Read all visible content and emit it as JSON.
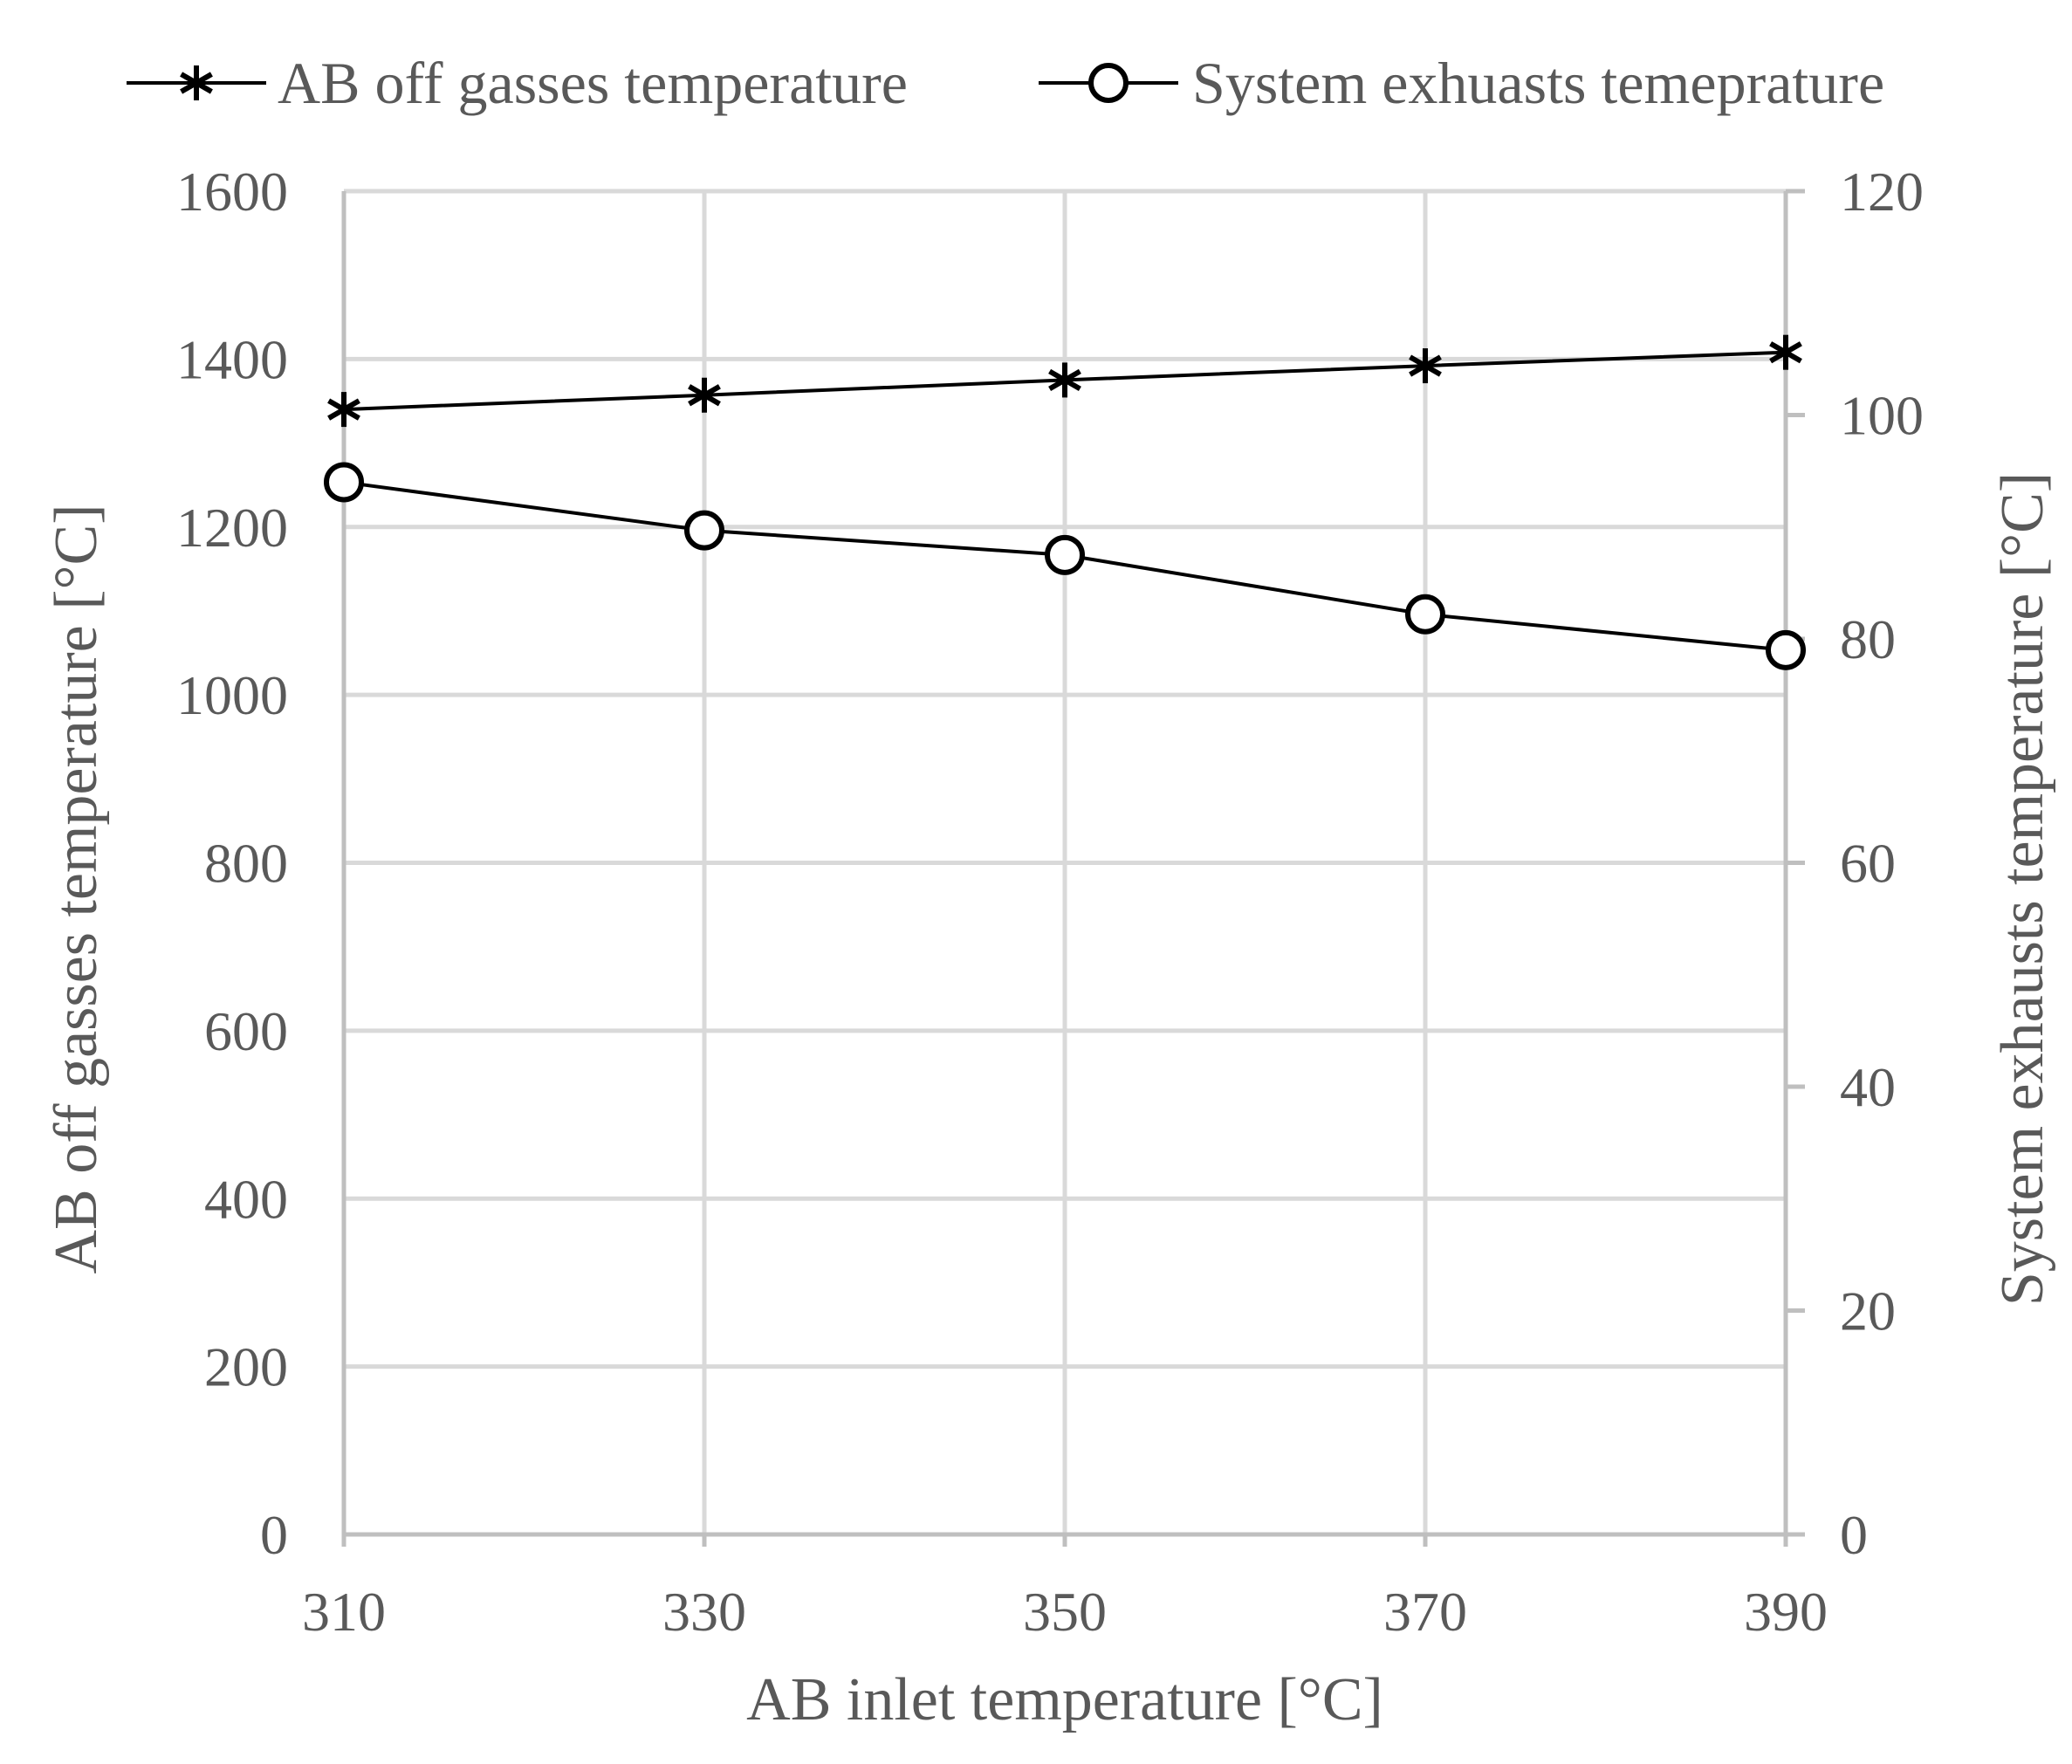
{
  "chart_data": {
    "type": "line",
    "title": "",
    "xlabel": "AB inlet temperature [°C]",
    "ylabel_left": "AB off gasses temperature [°C]",
    "ylabel_right": "System exhausts temperature [°C]",
    "x": [
      310,
      330,
      350,
      370,
      390
    ],
    "x_tick_labels": [
      "310",
      "330",
      "350",
      "370",
      "390"
    ],
    "ylim_left": [
      0,
      1600
    ],
    "y_left_ticks": [
      "0",
      "200",
      "400",
      "600",
      "800",
      "1000",
      "1200",
      "1400",
      "1600"
    ],
    "ylim_right": [
      0,
      120
    ],
    "y_right_ticks": [
      "0",
      "20",
      "40",
      "60",
      "80",
      "100",
      "120"
    ],
    "grid": true,
    "legend_position": "top",
    "series": [
      {
        "name": "AB off gasses temperature",
        "axis": "left",
        "marker": "star",
        "color": "#000000",
        "values": [
          1340,
          1357,
          1375,
          1392,
          1408
        ]
      },
      {
        "name": "System exhuasts temeprature",
        "axis": "right",
        "marker": "circle",
        "color": "#000000",
        "values": [
          94,
          89.7,
          87.5,
          82.2,
          79
        ]
      }
    ]
  }
}
